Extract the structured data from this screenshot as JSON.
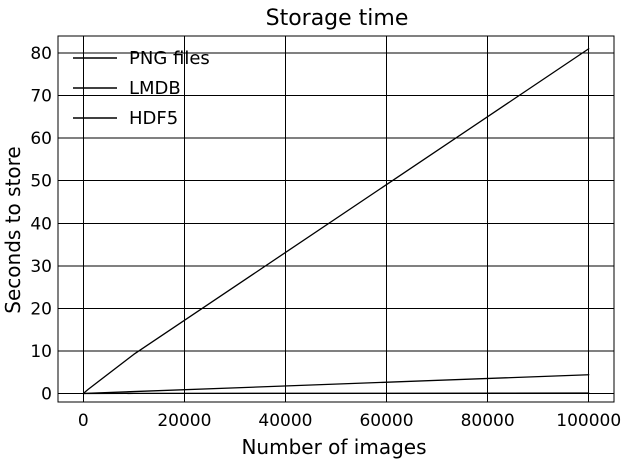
{
  "chart_data": {
    "type": "line",
    "title": "Storage time",
    "xlabel": "Number of images",
    "ylabel": "Seconds to store",
    "xlim": [
      -5000,
      105000
    ],
    "ylim": [
      -2,
      84
    ],
    "xticks": [
      0,
      20000,
      40000,
      60000,
      80000,
      100000
    ],
    "xtick_labels": [
      "0",
      "20000",
      "40000",
      "60000",
      "80000",
      "100000"
    ],
    "yticks": [
      0,
      10,
      20,
      30,
      40,
      50,
      60,
      70,
      80
    ],
    "ytick_labels": [
      "0",
      "10",
      "20",
      "30",
      "40",
      "50",
      "60",
      "70",
      "80"
    ],
    "grid": true,
    "legend_position": "top-left",
    "series": [
      {
        "name": "PNG files",
        "x": [
          10,
          100,
          1000,
          10000,
          100000
        ],
        "y": [
          0.01,
          0.1,
          1.0,
          9.2,
          81.0
        ],
        "color": "#000000"
      },
      {
        "name": "LMDB",
        "x": [
          10,
          100,
          1000,
          10000,
          100000
        ],
        "y": [
          0.0,
          0.0,
          0.05,
          0.45,
          4.4
        ],
        "color": "#000000"
      },
      {
        "name": "HDF5",
        "x": [
          10,
          100,
          1000,
          10000,
          100000
        ],
        "y": [
          0.0,
          0.0,
          0.0,
          0.02,
          0.1
        ],
        "color": "#000000"
      }
    ]
  }
}
